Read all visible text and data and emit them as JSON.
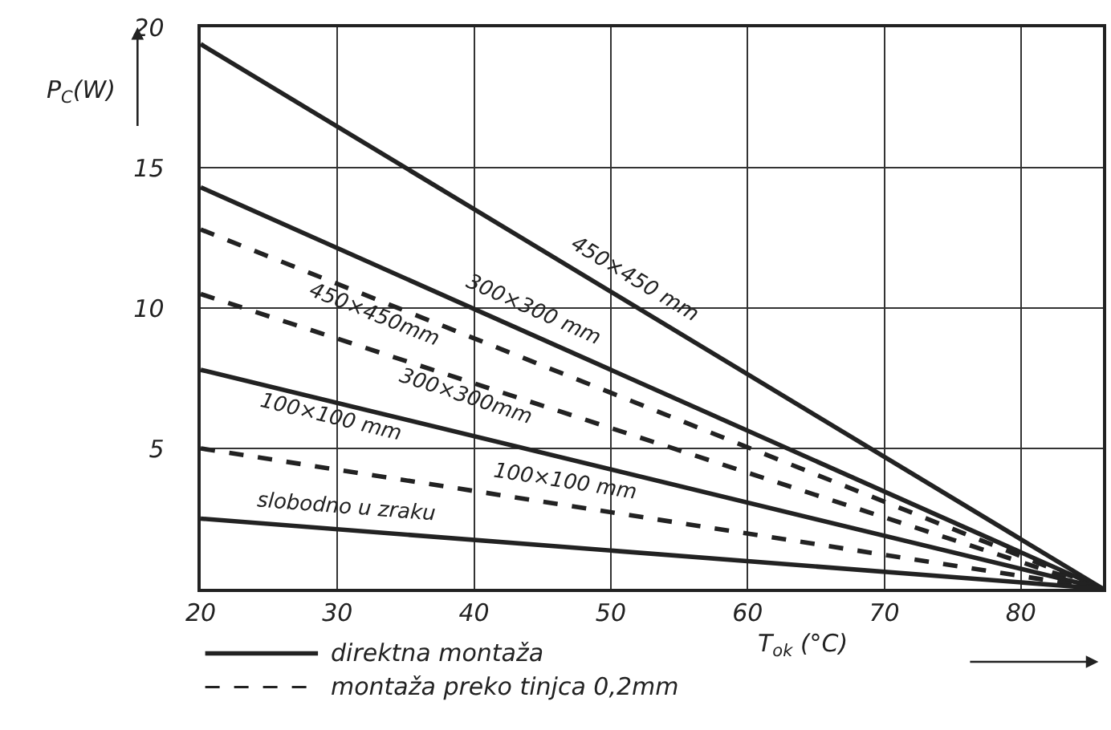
{
  "chart_data": {
    "type": "line",
    "xlabel": "T$_{ok}$ (°C)",
    "ylabel": "P$_{C}$(W)",
    "x": [
      20,
      86
    ],
    "xlim": [
      20,
      86
    ],
    "xticks": [
      20,
      30,
      40,
      50,
      60,
      70,
      80
    ],
    "ylim": [
      0,
      20
    ],
    "yticks": [
      {
        "value": 0,
        "label": null
      },
      5,
      10,
      15,
      20
    ],
    "grid": true,
    "legend": false,
    "marker": "none",
    "series": [
      {
        "name": "450×450 mm",
        "color": "#222222",
        "values": [
          19.4,
          0
        ],
        "line_style": "solid"
      },
      {
        "name": "300×300 mm",
        "color": "#222222",
        "values": [
          14.3,
          0
        ],
        "line_style": "solid"
      },
      {
        "name": "450×450mm",
        "color": "#222222",
        "values": [
          12.8,
          0
        ],
        "line_style": "dashed"
      },
      {
        "name": "300×300mm",
        "color": "#222222",
        "values": [
          10.5,
          0
        ],
        "line_style": "dashed"
      },
      {
        "name": "100×100 mm",
        "color": "#222222",
        "values": [
          7.8,
          0
        ],
        "line_style": "solid"
      },
      {
        "name": "100×100 mm",
        "color": "#222222",
        "values": [
          5.0,
          0
        ],
        "line_style": "dashed"
      },
      {
        "name": "slobodno u zraku",
        "color": "#222222",
        "values": [
          2.5,
          0
        ],
        "line_style": "solid"
      }
    ],
    "annotations": [
      "direktna montaža",
      "montaža preko tinjca 0,2mm"
    ]
  }
}
